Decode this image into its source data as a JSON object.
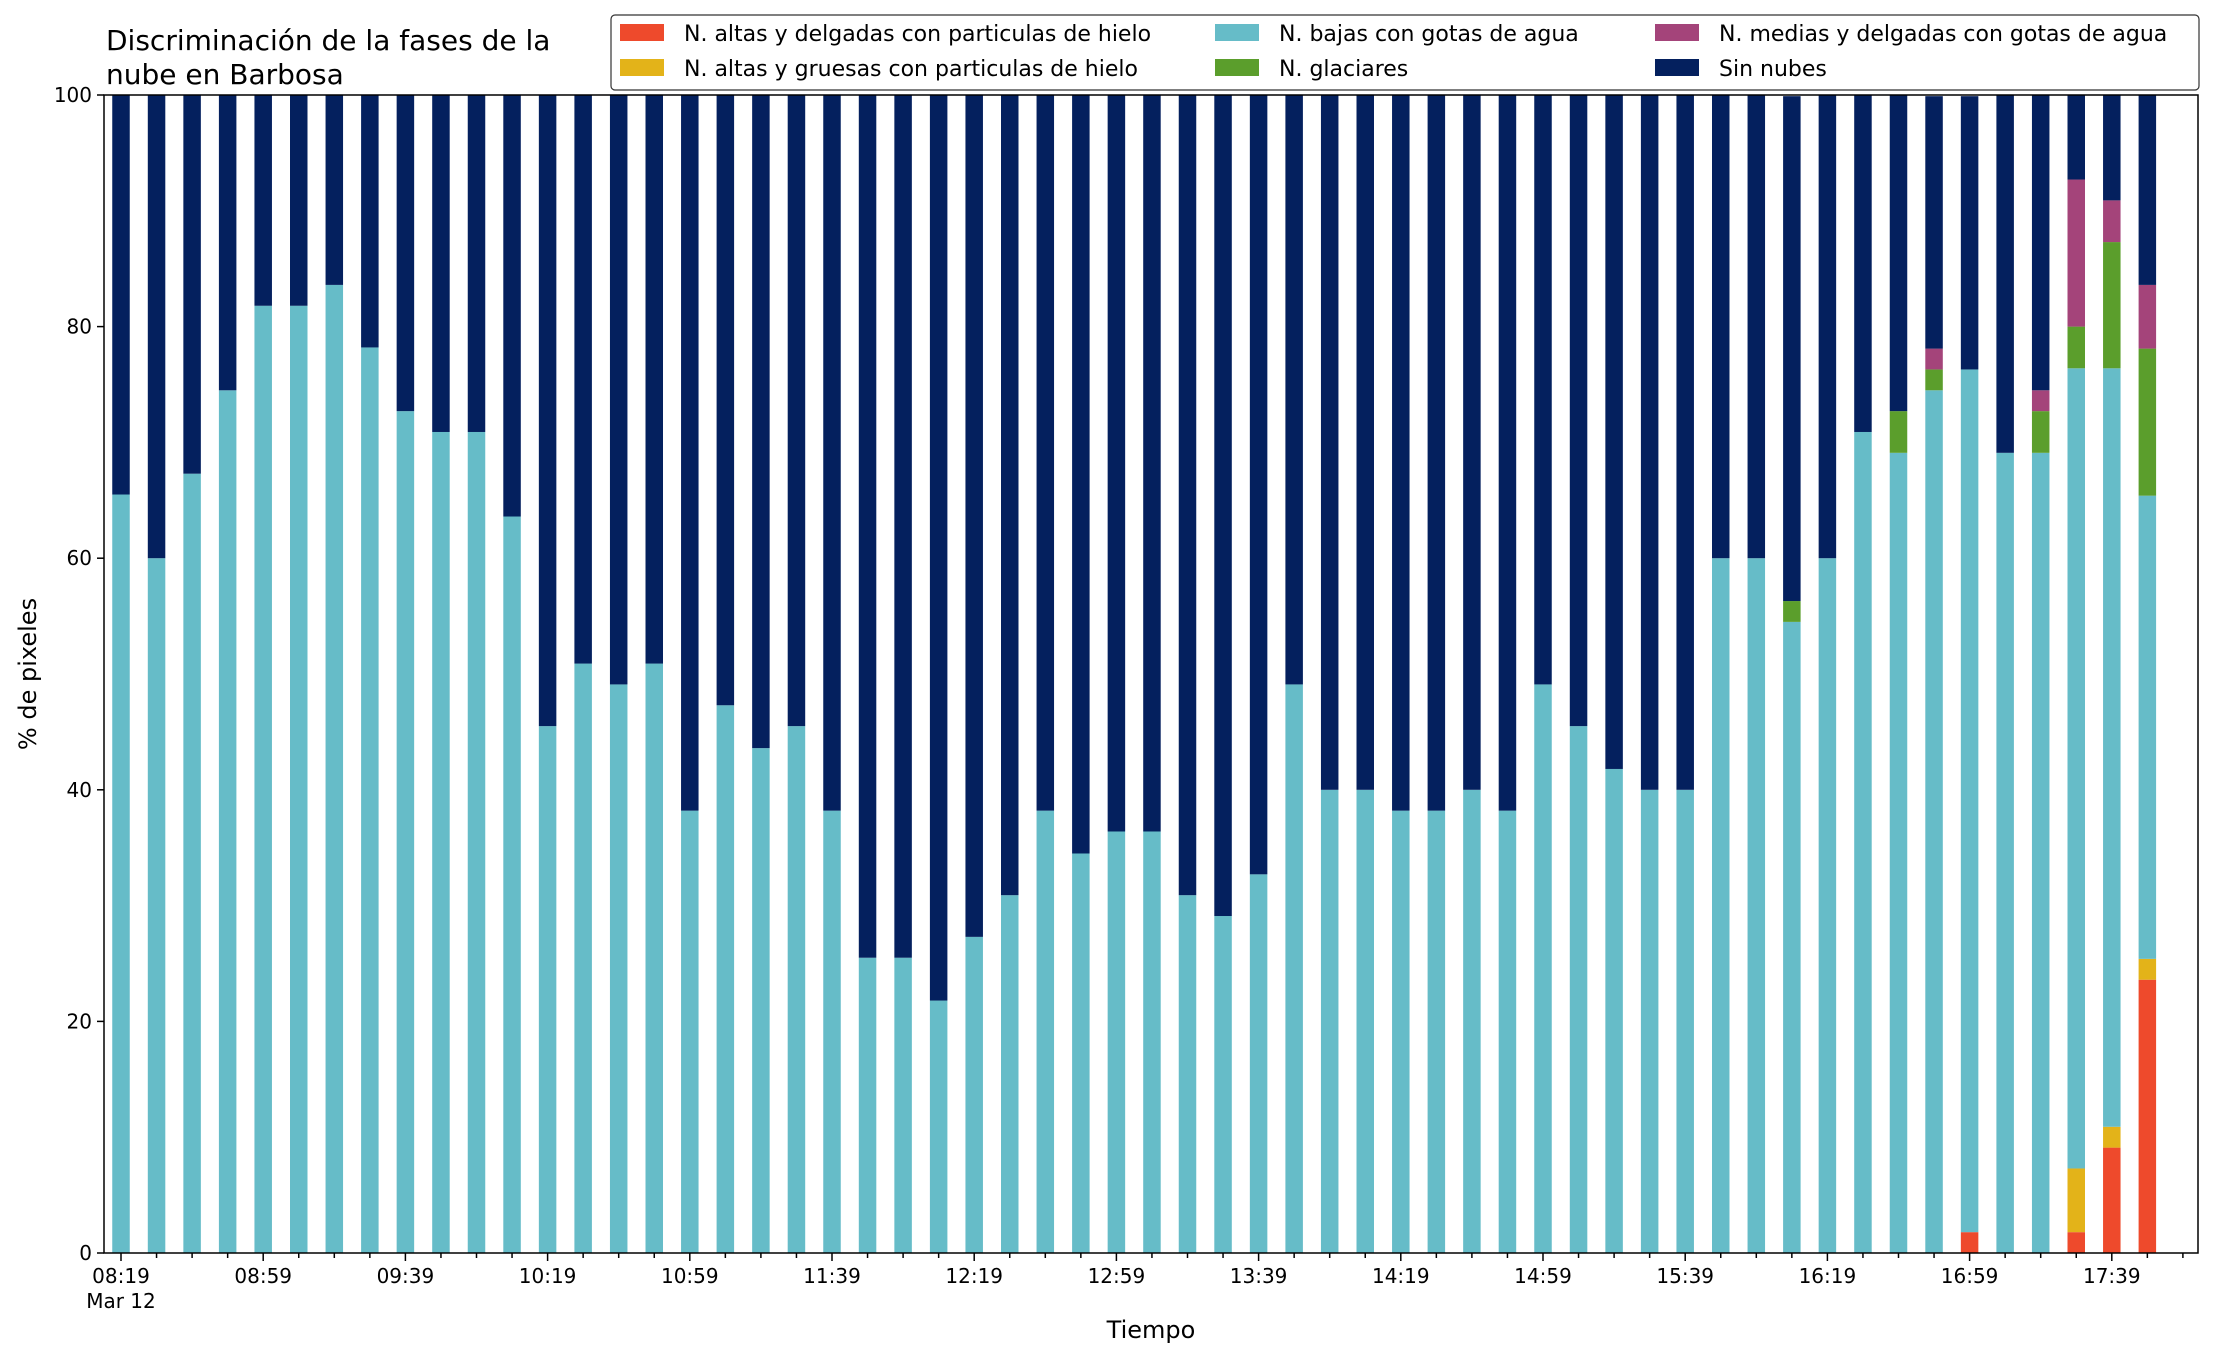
{
  "chart_data": {
    "type": "bar",
    "stacked": true,
    "title": [
      "Discriminación de la fases de la",
      "nube en Barbosa"
    ],
    "xlabel": "Tiempo",
    "ylabel": "% de pixeles",
    "ylim": [
      0,
      100
    ],
    "yticks": [
      0,
      20,
      40,
      60,
      80,
      100
    ],
    "xtick_labels": [
      {
        "index": 0,
        "label": "08:19",
        "sublabel": "Mar 12"
      },
      {
        "index": 4,
        "label": "08:59"
      },
      {
        "index": 8,
        "label": "09:39"
      },
      {
        "index": 12,
        "label": "10:19"
      },
      {
        "index": 16,
        "label": "10:59"
      },
      {
        "index": 20,
        "label": "11:39"
      },
      {
        "index": 24,
        "label": "12:19"
      },
      {
        "index": 28,
        "label": "12:59"
      },
      {
        "index": 32,
        "label": "13:39"
      },
      {
        "index": 36,
        "label": "14:19"
      },
      {
        "index": 40,
        "label": "14:59"
      },
      {
        "index": 44,
        "label": "15:39"
      },
      {
        "index": 48,
        "label": "16:19"
      },
      {
        "index": 52,
        "label": "16:59"
      },
      {
        "index": 56,
        "label": "17:39"
      }
    ],
    "categories": [
      "08:19",
      "08:29",
      "08:39",
      "08:49",
      "08:59",
      "09:09",
      "09:19",
      "09:29",
      "09:39",
      "09:49",
      "09:59",
      "10:09",
      "10:19",
      "10:29",
      "10:39",
      "10:49",
      "10:59",
      "11:09",
      "11:19",
      "11:29",
      "11:39",
      "11:49",
      "11:59",
      "12:09",
      "12:19",
      "12:29",
      "12:39",
      "12:49",
      "12:59",
      "13:09",
      "13:19",
      "13:29",
      "13:39",
      "13:49",
      "13:59",
      "14:09",
      "14:19",
      "14:29",
      "14:39",
      "14:49",
      "14:59",
      "15:09",
      "15:19",
      "15:29",
      "15:39",
      "15:49",
      "15:59",
      "16:09",
      "16:19",
      "16:29",
      "16:39",
      "16:49",
      "16:59",
      "17:09",
      "17:19",
      "17:29",
      "17:39",
      "17:49"
    ],
    "legend_position": "top-right",
    "legend_columns": 3,
    "series": [
      {
        "name": "N. altas y delgadas con particulas de hielo",
        "color": "#ee4a2c",
        "values": [
          0,
          0,
          0,
          0,
          0,
          0,
          0,
          0,
          0,
          0,
          0,
          0,
          0,
          0,
          0,
          0,
          0,
          0,
          0,
          0,
          0,
          0,
          0,
          0,
          0,
          0,
          0,
          0,
          0,
          0,
          0,
          0,
          0,
          0,
          0,
          0,
          0,
          0,
          0,
          0,
          0,
          0,
          0,
          0,
          0,
          0,
          0,
          0,
          0,
          0,
          0,
          0,
          1.8,
          0,
          0,
          1.8,
          9.1,
          23.6
        ]
      },
      {
        "name": "N. altas y gruesas con particulas de hielo",
        "color": "#e3b319",
        "values": [
          0,
          0,
          0,
          0,
          0,
          0,
          0,
          0,
          0,
          0,
          0,
          0,
          0,
          0,
          0,
          0,
          0,
          0,
          0,
          0,
          0,
          0,
          0,
          0,
          0,
          0,
          0,
          0,
          0,
          0,
          0,
          0,
          0,
          0,
          0,
          0,
          0,
          0,
          0,
          0,
          0,
          0,
          0,
          0,
          0,
          0,
          0,
          0,
          0,
          0,
          0,
          0,
          0,
          0,
          0,
          5.5,
          1.8,
          1.8
        ]
      },
      {
        "name": "N. bajas con gotas de agua",
        "color": "#66bcc8",
        "values": [
          65.5,
          60,
          67.3,
          74.5,
          81.8,
          81.8,
          83.6,
          78.2,
          72.7,
          70.9,
          70.9,
          63.6,
          45.5,
          50.9,
          49.1,
          50.9,
          38.2,
          47.3,
          43.6,
          45.5,
          38.2,
          25.5,
          25.5,
          21.8,
          27.3,
          30.9,
          38.2,
          34.5,
          36.4,
          36.4,
          30.9,
          29.1,
          32.7,
          49.1,
          40,
          40,
          38.2,
          38.2,
          40,
          38.2,
          49.1,
          45.5,
          41.8,
          40,
          40,
          60,
          60,
          54.5,
          60,
          70.9,
          69.1,
          74.5,
          74.5,
          69.1,
          69.1,
          69.1,
          65.5,
          40
        ]
      },
      {
        "name": "N. glaciares",
        "color": "#5b9e2c",
        "values": [
          0,
          0,
          0,
          0,
          0,
          0,
          0,
          0,
          0,
          0,
          0,
          0,
          0,
          0,
          0,
          0,
          0,
          0,
          0,
          0,
          0,
          0,
          0,
          0,
          0,
          0,
          0,
          0,
          0,
          0,
          0,
          0,
          0,
          0,
          0,
          0,
          0,
          0,
          0,
          0,
          0,
          0,
          0,
          0,
          0,
          0,
          0,
          1.8,
          0,
          0,
          3.6,
          1.8,
          0,
          0,
          3.6,
          3.6,
          10.9,
          12.7
        ]
      },
      {
        "name": "N. medias y delgadas con gotas de agua",
        "color": "#a4447a",
        "values": [
          0,
          0,
          0,
          0,
          0,
          0,
          0,
          0,
          0,
          0,
          0,
          0,
          0,
          0,
          0,
          0,
          0,
          0,
          0,
          0,
          0,
          0,
          0,
          0,
          0,
          0,
          0,
          0,
          0,
          0,
          0,
          0,
          0,
          0,
          0,
          0,
          0,
          0,
          0,
          0,
          0,
          0,
          0,
          0,
          0,
          0,
          0,
          0,
          0,
          0,
          0,
          1.8,
          0,
          0,
          1.8,
          12.7,
          3.6,
          5.5
        ]
      },
      {
        "name": "Sin nubes",
        "color": "#04205e",
        "values": [
          34.5,
          40,
          32.7,
          25.5,
          18.2,
          18.2,
          16.4,
          21.8,
          27.3,
          29.1,
          29.1,
          36.4,
          54.5,
          49.1,
          50.9,
          49.1,
          61.8,
          52.7,
          56.4,
          54.5,
          61.8,
          74.5,
          74.5,
          78.2,
          72.7,
          69.1,
          61.8,
          65.5,
          63.6,
          63.6,
          69.1,
          70.9,
          67.3,
          50.9,
          60,
          60,
          61.8,
          61.8,
          60,
          61.8,
          50.9,
          54.5,
          58.2,
          60,
          60,
          40,
          40,
          43.6,
          40,
          29.1,
          27.3,
          21.8,
          23.6,
          30.9,
          25.5,
          7.3,
          9.1,
          16.4
        ]
      }
    ]
  }
}
